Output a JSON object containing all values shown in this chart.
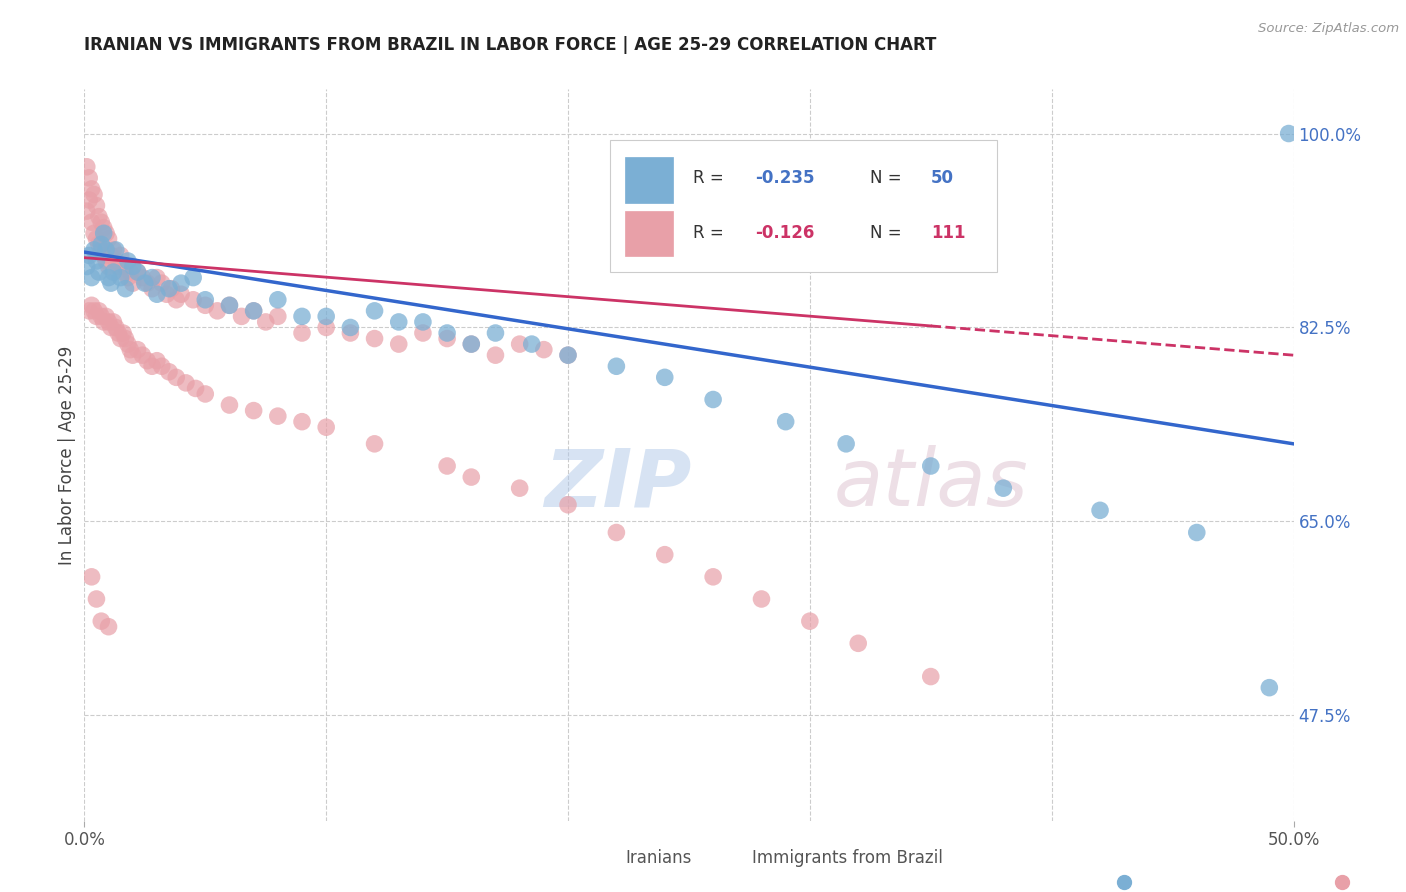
{
  "title": "IRANIAN VS IMMIGRANTS FROM BRAZIL IN LABOR FORCE | AGE 25-29 CORRELATION CHART",
  "source": "Source: ZipAtlas.com",
  "ylabel": "In Labor Force | Age 25-29",
  "y_ticks": [
    0.475,
    0.65,
    0.825,
    1.0
  ],
  "y_tick_labels": [
    "47.5%",
    "65.0%",
    "82.5%",
    "100.0%"
  ],
  "xlim": [
    0.0,
    0.5
  ],
  "ylim": [
    0.38,
    1.04
  ],
  "iranians_color": "#7bafd4",
  "brazil_color": "#e8a0a8",
  "watermark_zip": "ZIP",
  "watermark_atlas": "atlas",
  "iranians_scatter_x": [
    0.001,
    0.002,
    0.003,
    0.004,
    0.005,
    0.006,
    0.007,
    0.008,
    0.009,
    0.01,
    0.011,
    0.012,
    0.013,
    0.015,
    0.017,
    0.018,
    0.02,
    0.022,
    0.025,
    0.028,
    0.03,
    0.035,
    0.04,
    0.045,
    0.05,
    0.06,
    0.07,
    0.08,
    0.09,
    0.1,
    0.11,
    0.12,
    0.13,
    0.14,
    0.15,
    0.16,
    0.17,
    0.185,
    0.2,
    0.22,
    0.24,
    0.26,
    0.29,
    0.315,
    0.35,
    0.38,
    0.42,
    0.46,
    0.49,
    0.498
  ],
  "iranians_scatter_y": [
    0.88,
    0.89,
    0.87,
    0.895,
    0.885,
    0.875,
    0.9,
    0.91,
    0.895,
    0.87,
    0.865,
    0.875,
    0.895,
    0.87,
    0.86,
    0.885,
    0.88,
    0.875,
    0.865,
    0.87,
    0.855,
    0.86,
    0.865,
    0.87,
    0.85,
    0.845,
    0.84,
    0.85,
    0.835,
    0.835,
    0.825,
    0.84,
    0.83,
    0.83,
    0.82,
    0.81,
    0.82,
    0.81,
    0.8,
    0.79,
    0.78,
    0.76,
    0.74,
    0.72,
    0.7,
    0.68,
    0.66,
    0.64,
    0.5,
    1.0
  ],
  "brazil_scatter_x": [
    0.001,
    0.001,
    0.002,
    0.002,
    0.003,
    0.003,
    0.004,
    0.004,
    0.005,
    0.005,
    0.006,
    0.006,
    0.007,
    0.007,
    0.008,
    0.008,
    0.009,
    0.009,
    0.01,
    0.01,
    0.011,
    0.012,
    0.013,
    0.014,
    0.015,
    0.016,
    0.017,
    0.018,
    0.019,
    0.02,
    0.022,
    0.024,
    0.026,
    0.028,
    0.03,
    0.032,
    0.034,
    0.036,
    0.038,
    0.04,
    0.045,
    0.05,
    0.055,
    0.06,
    0.065,
    0.07,
    0.075,
    0.08,
    0.09,
    0.1,
    0.11,
    0.12,
    0.13,
    0.14,
    0.15,
    0.16,
    0.17,
    0.18,
    0.19,
    0.2,
    0.002,
    0.003,
    0.004,
    0.005,
    0.006,
    0.007,
    0.008,
    0.009,
    0.01,
    0.011,
    0.012,
    0.013,
    0.014,
    0.015,
    0.016,
    0.017,
    0.018,
    0.019,
    0.02,
    0.022,
    0.024,
    0.026,
    0.028,
    0.03,
    0.032,
    0.035,
    0.038,
    0.042,
    0.046,
    0.05,
    0.06,
    0.07,
    0.08,
    0.09,
    0.1,
    0.12,
    0.15,
    0.16,
    0.18,
    0.2,
    0.22,
    0.24,
    0.26,
    0.28,
    0.3,
    0.32,
    0.35,
    0.003,
    0.005,
    0.007,
    0.01
  ],
  "brazil_scatter_y": [
    0.97,
    0.93,
    0.96,
    0.94,
    0.95,
    0.92,
    0.945,
    0.91,
    0.935,
    0.905,
    0.925,
    0.9,
    0.92,
    0.895,
    0.915,
    0.89,
    0.91,
    0.885,
    0.905,
    0.88,
    0.89,
    0.895,
    0.885,
    0.88,
    0.89,
    0.875,
    0.88,
    0.87,
    0.875,
    0.865,
    0.875,
    0.87,
    0.865,
    0.86,
    0.87,
    0.865,
    0.855,
    0.86,
    0.85,
    0.855,
    0.85,
    0.845,
    0.84,
    0.845,
    0.835,
    0.84,
    0.83,
    0.835,
    0.82,
    0.825,
    0.82,
    0.815,
    0.81,
    0.82,
    0.815,
    0.81,
    0.8,
    0.81,
    0.805,
    0.8,
    0.84,
    0.845,
    0.84,
    0.835,
    0.84,
    0.835,
    0.83,
    0.835,
    0.83,
    0.825,
    0.83,
    0.825,
    0.82,
    0.815,
    0.82,
    0.815,
    0.81,
    0.805,
    0.8,
    0.805,
    0.8,
    0.795,
    0.79,
    0.795,
    0.79,
    0.785,
    0.78,
    0.775,
    0.77,
    0.765,
    0.755,
    0.75,
    0.745,
    0.74,
    0.735,
    0.72,
    0.7,
    0.69,
    0.68,
    0.665,
    0.64,
    0.62,
    0.6,
    0.58,
    0.56,
    0.54,
    0.51,
    0.6,
    0.58,
    0.56,
    0.555
  ],
  "iran_trend_x0": 0.0,
  "iran_trend_x1": 0.5,
  "iran_trend_y0": 0.893,
  "iran_trend_y1": 0.72,
  "braz_trend_x0": 0.0,
  "braz_trend_x1": 0.5,
  "braz_trend_y0": 0.888,
  "braz_trend_y1": 0.8
}
